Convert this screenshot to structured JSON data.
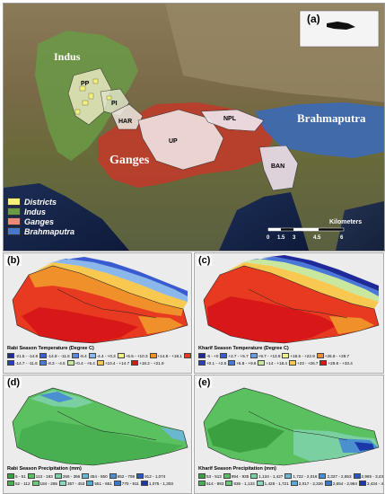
{
  "panel_a": {
    "label": "(a)",
    "river_labels": {
      "indus": "Indus",
      "ganges": "Ganges",
      "brahmaputra": "Brahmaputra"
    },
    "region_labels": {
      "pp": "PP",
      "pi": "PI",
      "har": "HAR",
      "up": "UP",
      "npl": "NPL",
      "ban": "BAN"
    },
    "legend": [
      {
        "label": "Districts",
        "color": "#f5f07a"
      },
      {
        "label": "Indus",
        "color": "#6a9a45"
      },
      {
        "label": "Ganges",
        "color": "#e88a7a"
      },
      {
        "label": "Brahmaputra",
        "color": "#4a78c8"
      }
    ],
    "scale": {
      "unit": "Kilometers",
      "ticks": [
        "0",
        "1.5",
        "3",
        "4.5",
        "6"
      ]
    }
  },
  "panel_b": {
    "label": "(b)",
    "legend_title": "Rabi Season Temperature (Degree C)",
    "legend_row1": [
      {
        "label": "-21.5 - -14.8",
        "color": "#1f2a9a"
      },
      {
        "label": "-14.8 - -11.5",
        "color": "#3a5ad0"
      },
      {
        "label": "-8.4",
        "color": "#5a8ae0"
      },
      {
        "label": "-4.4 - +0.3",
        "color": "#8ab8ea"
      },
      {
        "label": "+5.5 - +10.3",
        "color": "#f0f08a"
      },
      {
        "label": "+14.8 - +18.1",
        "color": "#f0902a"
      },
      {
        "label": "+18.1 - +21.9",
        "color": "#e83a20"
      }
    ],
    "legend_row2": [
      {
        "label": "-14.7 - -11.6",
        "color": "#2a40b8"
      },
      {
        "label": "-8.3 - -4.5",
        "color": "#4a78d8"
      },
      {
        "label": "+0.4 - +5.4",
        "color": "#c8e8a0"
      },
      {
        "label": "+10.4 - +14.7",
        "color": "#f8c850"
      },
      {
        "label": "+18.2 - +21.9",
        "color": "#d81818"
      }
    ]
  },
  "panel_c": {
    "label": "(c)",
    "legend_title": "Kharif Season Temperature (Degree C)",
    "legend_row1": [
      {
        "label": "-6 - +0",
        "color": "#1f2a9a"
      },
      {
        "label": "+2.7 - +5.7",
        "color": "#3a5ad0"
      },
      {
        "label": "+9.7 - +13.9",
        "color": "#6a9ae0"
      },
      {
        "label": "+18.5 - +22.9",
        "color": "#f0f08a"
      },
      {
        "label": "+26.8 - +29.7",
        "color": "#f0902a"
      }
    ],
    "legend_row2": [
      {
        "label": "+0.1 - +2.6",
        "color": "#2a40b8"
      },
      {
        "label": "+5.8 - +9.6",
        "color": "#4a78d8"
      },
      {
        "label": "+14 - +18.4",
        "color": "#c8e8a0"
      },
      {
        "label": "+23 - +26.7",
        "color": "#f8c850"
      },
      {
        "label": "+29.8 - +33.4",
        "color": "#d81818"
      }
    ]
  },
  "panel_d": {
    "label": "(d)",
    "legend_title": "Rabi Season Precipitation (mm)",
    "legend_row1": [
      {
        "label": "5 - 51",
        "color": "#3aa040"
      },
      {
        "label": "113 - 183",
        "color": "#5ac060"
      },
      {
        "label": "266 - 356",
        "color": "#7ad0a0"
      },
      {
        "label": "454 - 550",
        "color": "#6ab8d0"
      },
      {
        "label": "652 - 769",
        "color": "#4a90d0"
      },
      {
        "label": "912 - 1,074",
        "color": "#2a58c0"
      }
    ],
    "legend_row2": [
      {
        "label": "52 - 112",
        "color": "#48b050"
      },
      {
        "label": "184 - 265",
        "color": "#6ac878"
      },
      {
        "label": "357 - 453",
        "color": "#8ad8c0"
      },
      {
        "label": "551 - 651",
        "color": "#58a8d0"
      },
      {
        "label": "770 - 911",
        "color": "#3a78c8"
      },
      {
        "label": "1,075 - 1,303",
        "color": "#1a38a8"
      }
    ]
  },
  "panel_e": {
    "label": "(e)",
    "legend_title": "Kharif Season Precipitation (mm)",
    "legend_row1": [
      {
        "label": "53 - 513",
        "color": "#3aa040"
      },
      {
        "label": "894 - 935",
        "color": "#5ac060"
      },
      {
        "label": "1,134 - 1,427",
        "color": "#7ad0a0"
      },
      {
        "label": "1,722 - 2,016",
        "color": "#6ab8d0"
      },
      {
        "label": "2,327 - 2,653",
        "color": "#4a90d0"
      },
      {
        "label": "2,965 - 3,433",
        "color": "#2a58c0"
      }
    ],
    "legend_row2": [
      {
        "label": "514 - 893",
        "color": "#48b050"
      },
      {
        "label": "936 - 1,133",
        "color": "#6ac878"
      },
      {
        "label": "1,428 - 1,721",
        "color": "#8ad8c0"
      },
      {
        "label": "2,017 - 2,326",
        "color": "#58a8d0"
      },
      {
        "label": "2,654 - 2,964",
        "color": "#3a78c8"
      },
      {
        "label": "3,434 - 4,225",
        "color": "#1a38a8"
      }
    ]
  }
}
